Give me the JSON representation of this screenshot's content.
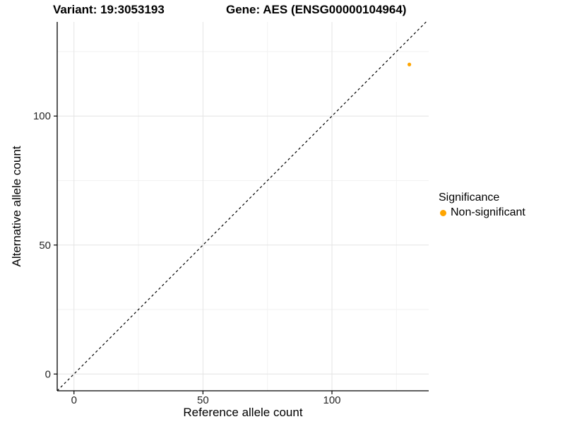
{
  "titles": {
    "variant": "Variant: 19:3053193",
    "gene": "Gene: AES (ENSG00000104964)"
  },
  "axes": {
    "x_label": "Reference allele count",
    "y_label": "Alternative allele count"
  },
  "legend": {
    "title": "Significance",
    "items": [
      {
        "label": "Non-significant",
        "color": "#FFA500"
      }
    ]
  },
  "colors": {
    "point": "#FFA500",
    "axis_line": "#000000",
    "tick_text": "#262626",
    "grid_major": "#E4E4E4",
    "grid_minor": "#F2F2F2",
    "identity_line": "#000000",
    "background": "#FFFFFF"
  },
  "chart_data": {
    "type": "scatter",
    "title": "Variant: 19:3053193   Gene: AES (ENSG00000104964)",
    "xlabel": "Reference allele count",
    "ylabel": "Alternative allele count",
    "xlim": [
      -6.5,
      137.5
    ],
    "ylim": [
      -6.5,
      136.5
    ],
    "x_ticks": [
      0,
      50,
      100
    ],
    "y_ticks": [
      0,
      50,
      100
    ],
    "x_minor_ticks": [
      25,
      75,
      125
    ],
    "y_minor_ticks": [
      25,
      75,
      125
    ],
    "grid": true,
    "legend_position": "right",
    "identity_line": {
      "slope": 1,
      "intercept": 0,
      "style": "dashed"
    },
    "series": [
      {
        "name": "Non-significant",
        "points": [
          {
            "x": 130,
            "y": 120
          }
        ]
      }
    ]
  }
}
